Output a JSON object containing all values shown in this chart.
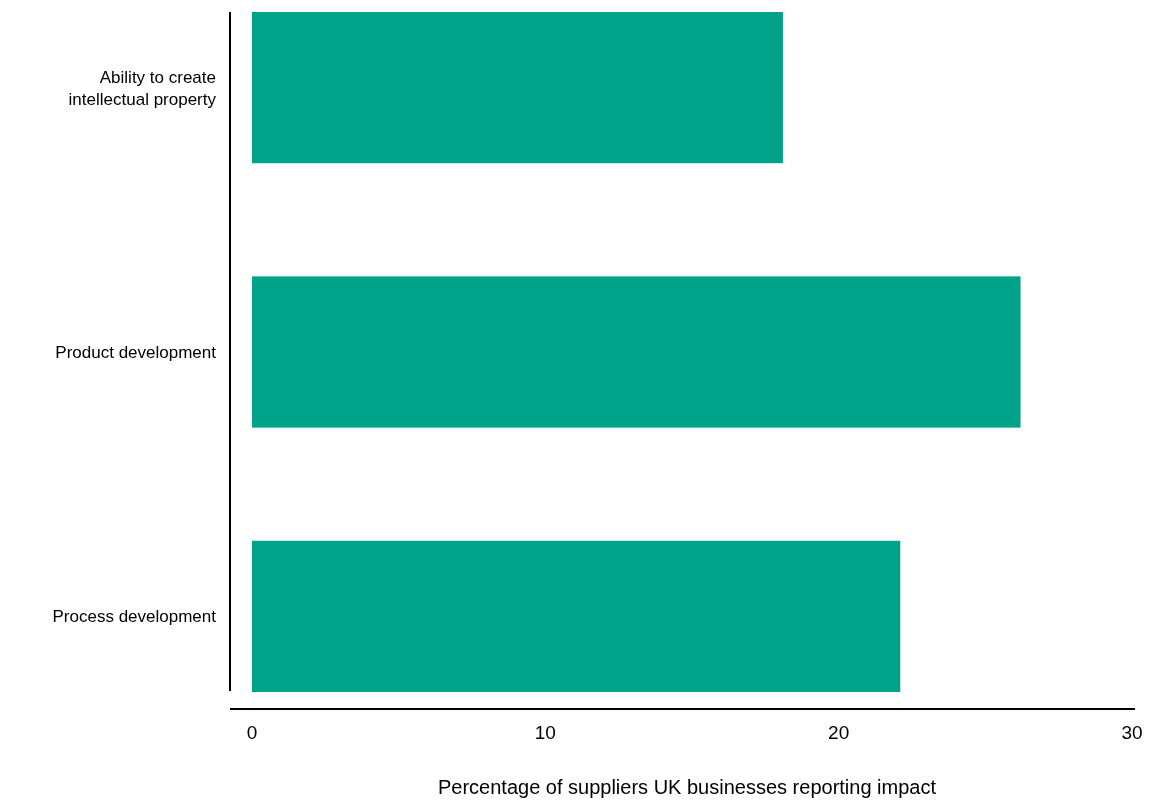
{
  "chart_data": {
    "type": "bar",
    "orientation": "horizontal",
    "categories": [
      "Ability to create intellectual property",
      "Product development",
      "Process development"
    ],
    "values": [
      18.1,
      26.2,
      22.1
    ],
    "color": "#00a38a",
    "xlim": [
      0,
      30
    ],
    "xticks": [
      0,
      10,
      20,
      30
    ],
    "xlabel": "Percentage of suppliers UK businesses reporting impact"
  }
}
